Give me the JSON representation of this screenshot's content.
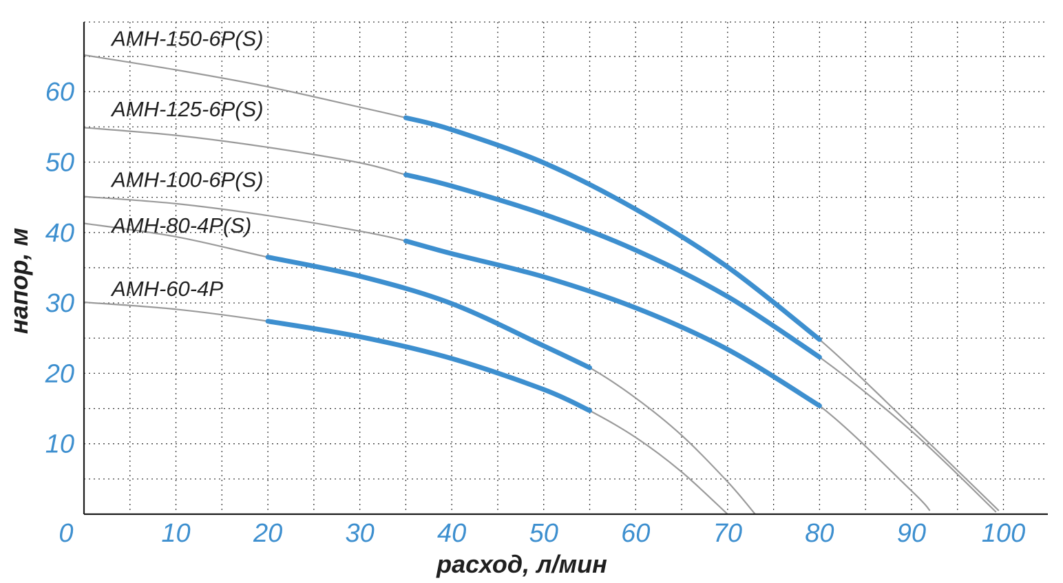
{
  "chart_data": {
    "type": "line",
    "title": "",
    "xlabel": "расход, л/мин",
    "ylabel": "напор, м",
    "xlim": [
      0,
      105
    ],
    "ylim": [
      0,
      70
    ],
    "x_ticks": [
      10,
      20,
      30,
      40,
      50,
      60,
      70,
      80,
      90,
      100
    ],
    "y_ticks": [
      10,
      20,
      30,
      40,
      50,
      60
    ],
    "origin_label": "0",
    "x_grid_step": 5,
    "y_grid_step": 5,
    "grid": true,
    "colors": {
      "tick_labels": "#3d8fcf",
      "working_range": "#3d8fcf",
      "full_curve": "#9a9a9a"
    },
    "series": [
      {
        "name": "АМН-150-6Р(S)",
        "label_pos": [
          3,
          66.5
        ],
        "x": [
          0,
          10,
          20,
          30,
          35,
          40,
          50,
          60,
          70,
          80,
          90,
          99.5
        ],
        "y": [
          65.2,
          63.1,
          60.7,
          57.8,
          56.3,
          54.6,
          49.9,
          43.3,
          35.1,
          24.8,
          12.5,
          0.5
        ],
        "work_range": [
          35,
          80
        ]
      },
      {
        "name": "АМН-125-6Р(S)",
        "label_pos": [
          3,
          56.5
        ],
        "x": [
          0,
          10,
          20,
          30,
          35,
          40,
          50,
          60,
          70,
          80,
          90,
          99.2
        ],
        "y": [
          54.9,
          53.8,
          52.1,
          49.9,
          48.2,
          46.6,
          42.6,
          37.5,
          30.9,
          22.3,
          11.8,
          0.3
        ],
        "work_range": [
          35,
          80
        ]
      },
      {
        "name": "АМН-100-6Р(S)",
        "label_pos": [
          3,
          46.5
        ],
        "x": [
          0,
          10,
          20,
          30,
          35,
          40,
          50,
          60,
          70,
          80,
          90,
          92
        ],
        "y": [
          45.1,
          44.1,
          42.4,
          40.2,
          38.8,
          37.0,
          33.7,
          29.3,
          23.4,
          15.4,
          3.3,
          0.5
        ],
        "work_range": [
          35,
          80
        ]
      },
      {
        "name": "АМН-80-4Р(S)",
        "label_pos": [
          3,
          40
        ],
        "x": [
          0,
          10,
          20,
          30,
          40,
          50,
          55,
          60,
          65,
          70,
          73
        ],
        "y": [
          41.3,
          39.4,
          36.5,
          33.8,
          29.9,
          23.9,
          20.8,
          16.5,
          11.2,
          4.6,
          0.0
        ],
        "work_range": [
          20,
          55
        ]
      },
      {
        "name": "АМН-60-4Р",
        "label_pos": [
          3,
          31
        ],
        "x": [
          0,
          10,
          20,
          30,
          40,
          50,
          55,
          60,
          65,
          70
        ],
        "y": [
          30.1,
          29.1,
          27.4,
          25.2,
          22.1,
          17.7,
          14.7,
          10.9,
          6.0,
          0.0
        ],
        "work_range": [
          20,
          55
        ]
      }
    ]
  }
}
